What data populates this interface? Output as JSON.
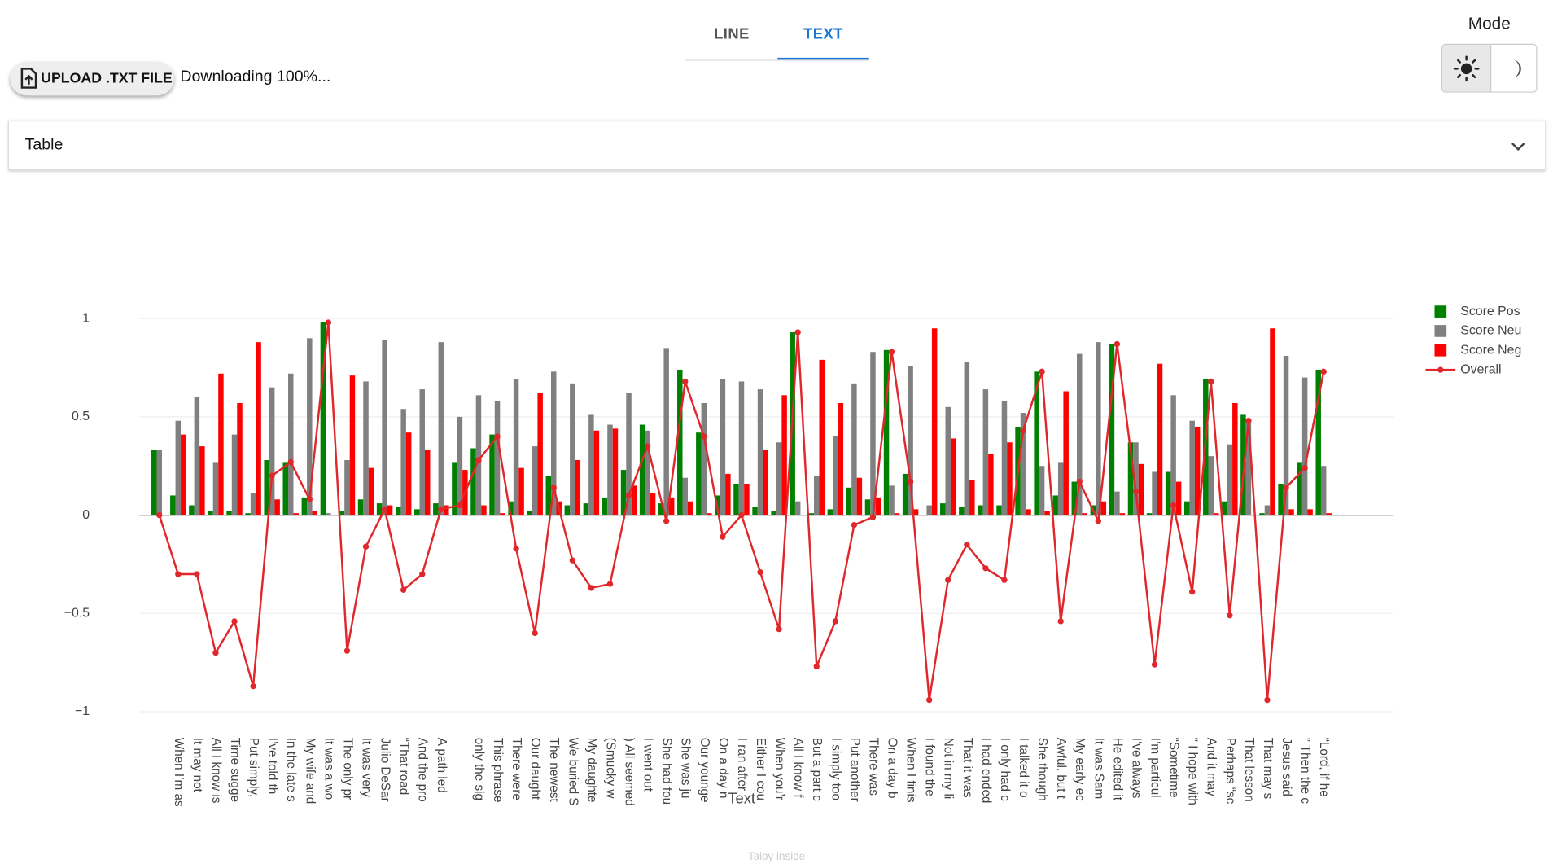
{
  "tabs": [
    "LINE",
    "TEXT"
  ],
  "mode_label": "Mode",
  "upload_button": "UPLOAD .TXT FILE",
  "status": "Downloading 100%...",
  "accordion": "Table",
  "footer": "Taipy inside",
  "chart_data": {
    "type": "bar",
    "xlabel": "Text",
    "categories": [
      null,
      "When I’m as",
      "It may not",
      "All I know is",
      "Time sugge",
      "Put simply,",
      "I’ve told th",
      "In the late s",
      "My wife and",
      "It was a wo",
      "The only pr",
      "It was very",
      "Julio DeSar",
      "“That road",
      "And the pro",
      "A path led",
      null,
      "only the sig",
      "This phrase",
      "There were",
      "Our daught",
      "The newest",
      "We buried S",
      "My daughte",
      "(Smucky w",
      ") All seemed",
      "I went out",
      "She had fou",
      "She was ju",
      "Our younge",
      "On a day n",
      "I ran after",
      "Either I cou",
      "When you’r",
      "All I know f",
      "But a part c",
      "I simply too",
      "Put another",
      "There was",
      "On a day b",
      "When I finis",
      "I found the",
      "Not in my li",
      "That it was",
      "I had ended",
      "I only had c",
      "I talked it o",
      "She though",
      "Awful, but t",
      "My early ec",
      "It was Sam",
      "He edited it",
      "I’ve always",
      "I’m particul",
      "“Sometime",
      "” I hope with",
      "And it may",
      "Perhaps “sc",
      "That lesson",
      "That may s",
      "Jesus said",
      "” Then the c",
      "“Lord, if he"
    ],
    "series": [
      {
        "name": "Score Pos",
        "type": "bar",
        "color": "#008000",
        "values": [
          0.33,
          0.1,
          0.05,
          0.02,
          0.02,
          0.01,
          0.28,
          0.27,
          0.09,
          0.98,
          0.02,
          0.08,
          0.06,
          0.04,
          0.03,
          0.06,
          0.27,
          0.34,
          0.41,
          0.07,
          0.02,
          0.2,
          0.05,
          0.06,
          0.09,
          0.23,
          0.46,
          0.06,
          0.74,
          0.42,
          0.1,
          0.16,
          0.04,
          0.02,
          0.93,
          0.01,
          0.03,
          0.14,
          0.08,
          0.84,
          0.21,
          0.0,
          0.06,
          0.04,
          0.05,
          0.05,
          0.45,
          0.73,
          0.1,
          0.17,
          0.05,
          0.87,
          0.37,
          0.01,
          0.22,
          0.07,
          0.69,
          0.07,
          0.51,
          0.01,
          0.16,
          0.27,
          0.74
        ]
      },
      {
        "name": "Score Neu",
        "type": "bar",
        "color": "#808080",
        "values": [
          0.33,
          0.48,
          0.6,
          0.27,
          0.41,
          0.11,
          0.65,
          0.72,
          0.9,
          0.01,
          0.28,
          0.68,
          0.89,
          0.54,
          0.64,
          0.88,
          0.5,
          0.61,
          0.58,
          0.69,
          0.35,
          0.73,
          0.67,
          0.51,
          0.46,
          0.62,
          0.43,
          0.85,
          0.19,
          0.57,
          0.69,
          0.68,
          0.64,
          0.37,
          0.07,
          0.2,
          0.4,
          0.67,
          0.83,
          0.15,
          0.76,
          0.05,
          0.55,
          0.78,
          0.64,
          0.58,
          0.52,
          0.25,
          0.27,
          0.82,
          0.88,
          0.12,
          0.37,
          0.22,
          0.61,
          0.48,
          0.3,
          0.36,
          0.49,
          0.05,
          0.81,
          0.7,
          0.25
        ]
      },
      {
        "name": "Score Neg",
        "type": "bar",
        "color": "#ff0000",
        "values": [
          0.0,
          0.41,
          0.35,
          0.72,
          0.57,
          0.88,
          0.08,
          0.01,
          0.02,
          0.0,
          0.71,
          0.24,
          0.05,
          0.42,
          0.33,
          0.05,
          0.23,
          0.05,
          0.01,
          0.24,
          0.62,
          0.07,
          0.28,
          0.43,
          0.44,
          0.15,
          0.11,
          0.09,
          0.07,
          0.01,
          0.21,
          0.16,
          0.33,
          0.61,
          0.0,
          0.79,
          0.57,
          0.19,
          0.09,
          0.01,
          0.03,
          0.95,
          0.39,
          0.18,
          0.31,
          0.37,
          0.03,
          0.02,
          0.63,
          0.01,
          0.07,
          0.01,
          0.26,
          0.77,
          0.17,
          0.45,
          0.01,
          0.57,
          0.0,
          0.95,
          0.03,
          0.03,
          0.01
        ]
      },
      {
        "name": "Overall",
        "type": "line",
        "color": "#e0272b",
        "values": [
          0,
          -0.3,
          -0.3,
          -0.7,
          -0.54,
          -0.87,
          0.2,
          0.27,
          0.08,
          0.98,
          -0.69,
          -0.16,
          0.03,
          -0.38,
          -0.3,
          0.03,
          0.05,
          0.28,
          0.4,
          -0.17,
          -0.6,
          0.14,
          -0.23,
          -0.37,
          -0.35,
          0.1,
          0.35,
          -0.03,
          0.68,
          0.4,
          -0.11,
          0,
          -0.29,
          -0.58,
          0.93,
          -0.77,
          -0.54,
          -0.05,
          -0.01,
          0.83,
          0.17,
          -0.94,
          -0.33,
          -0.15,
          -0.27,
          -0.33,
          0.43,
          0.73,
          -0.54,
          0.17,
          -0.03,
          0.87,
          0.12,
          -0.76,
          0.05,
          -0.39,
          0.68,
          -0.51,
          0.48,
          -0.94,
          0.14,
          0.24,
          0.73
        ]
      }
    ],
    "ylim": [
      -1.1,
      1.1
    ],
    "yticks": [
      {
        "value": -1,
        "label": "−1"
      },
      {
        "value": -0.5,
        "label": "−0.5"
      },
      0,
      0.5,
      1
    ],
    "grid": true,
    "legend": "right"
  }
}
